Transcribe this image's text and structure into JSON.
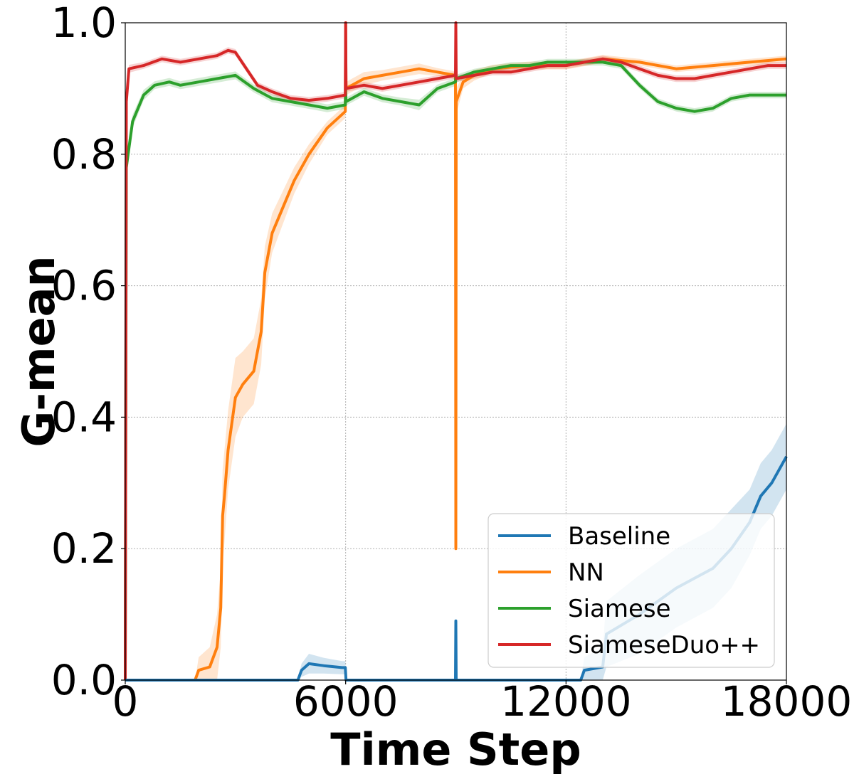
{
  "chart_data": {
    "type": "line",
    "title": "",
    "xlabel": "Time Step",
    "ylabel": "G-mean",
    "xlim": [
      0,
      18000
    ],
    "ylim": [
      0.0,
      1.0
    ],
    "xticks": [
      "0",
      "6000",
      "12000",
      "18000"
    ],
    "yticks": [
      "0.0",
      "0.2",
      "0.4",
      "0.6",
      "0.8",
      "1.0"
    ],
    "grid": true,
    "legend_position": "lower-right",
    "drift_points": [
      6000,
      9000
    ],
    "series": [
      {
        "name": "Baseline",
        "color": "#1f77b4",
        "x": [
          0,
          4700,
          4800,
          5000,
          5400,
          5900,
          5990,
          6010,
          8990,
          9000,
          9010,
          12400,
          12500,
          13000,
          13100,
          14000,
          15000,
          16000,
          16500,
          17000,
          17300,
          17600,
          18000
        ],
        "y": [
          0.0,
          0.0,
          0.015,
          0.025,
          0.022,
          0.019,
          0.019,
          0.0,
          0.0,
          0.09,
          0.0,
          0.0,
          0.015,
          0.02,
          0.07,
          0.1,
          0.14,
          0.17,
          0.2,
          0.24,
          0.28,
          0.3,
          0.34
        ],
        "band": [
          0.0,
          0.0,
          0.01,
          0.015,
          0.012,
          0.01,
          0.01,
          0.0,
          0.0,
          0.0,
          0.0,
          0.0,
          0.02,
          0.03,
          0.05,
          0.06,
          0.06,
          0.06,
          0.06,
          0.05,
          0.05,
          0.05,
          0.05
        ]
      },
      {
        "name": "NN",
        "color": "#ff7f0e",
        "x": [
          0,
          1900,
          2000,
          2300,
          2500,
          2600,
          2650,
          2700,
          2800,
          3000,
          3200,
          3500,
          3700,
          3800,
          4000,
          4300,
          4600,
          5000,
          5500,
          5990,
          6000,
          6010,
          6500,
          7000,
          7500,
          8000,
          8500,
          8990,
          9000,
          9010,
          9200,
          9500,
          10000,
          11000,
          12000,
          13000,
          14000,
          15000,
          16000,
          17000,
          18000
        ],
        "y": [
          0.0,
          0.0,
          0.015,
          0.02,
          0.05,
          0.11,
          0.25,
          0.28,
          0.35,
          0.43,
          0.45,
          0.47,
          0.53,
          0.62,
          0.68,
          0.72,
          0.76,
          0.8,
          0.84,
          0.865,
          1.0,
          0.9,
          0.915,
          0.92,
          0.925,
          0.93,
          0.925,
          0.92,
          0.2,
          0.88,
          0.91,
          0.92,
          0.93,
          0.935,
          0.935,
          0.945,
          0.94,
          0.93,
          0.935,
          0.94,
          0.945
        ],
        "band": [
          0.0,
          0.0,
          0.02,
          0.03,
          0.05,
          0.06,
          0.07,
          0.07,
          0.06,
          0.06,
          0.05,
          0.05,
          0.05,
          0.04,
          0.03,
          0.025,
          0.02,
          0.015,
          0.01,
          0.01,
          0.0,
          0.01,
          0.01,
          0.008,
          0.008,
          0.008,
          0.006,
          0.006,
          0.0,
          0.02,
          0.01,
          0.008,
          0.006,
          0.006,
          0.006,
          0.006,
          0.005,
          0.005,
          0.005,
          0.005,
          0.005
        ]
      },
      {
        "name": "Siamese",
        "color": "#2ca02c",
        "x": [
          0,
          30,
          200,
          500,
          800,
          1200,
          1500,
          2000,
          2500,
          3000,
          3500,
          4000,
          4500,
          5000,
          5500,
          5990,
          6000,
          6010,
          6500,
          7000,
          7500,
          8000,
          8500,
          8990,
          9000,
          9010,
          9500,
          10000,
          10500,
          11000,
          11500,
          12000,
          12500,
          13000,
          13500,
          14000,
          14500,
          15000,
          15500,
          16000,
          16500,
          17000,
          17500,
          18000
        ],
        "y": [
          0.0,
          0.78,
          0.85,
          0.89,
          0.905,
          0.91,
          0.905,
          0.91,
          0.915,
          0.92,
          0.9,
          0.885,
          0.88,
          0.875,
          0.87,
          0.875,
          0.9,
          0.88,
          0.895,
          0.885,
          0.88,
          0.875,
          0.9,
          0.91,
          0.92,
          0.915,
          0.925,
          0.93,
          0.935,
          0.935,
          0.94,
          0.94,
          0.94,
          0.94,
          0.935,
          0.905,
          0.88,
          0.87,
          0.865,
          0.87,
          0.885,
          0.89,
          0.89,
          0.89
        ],
        "band": [
          0.0,
          0.02,
          0.01,
          0.008,
          0.006,
          0.006,
          0.006,
          0.006,
          0.006,
          0.006,
          0.006,
          0.006,
          0.006,
          0.006,
          0.006,
          0.006,
          0.006,
          0.006,
          0.006,
          0.006,
          0.006,
          0.008,
          0.006,
          0.006,
          0.006,
          0.006,
          0.005,
          0.005,
          0.005,
          0.005,
          0.005,
          0.005,
          0.005,
          0.005,
          0.005,
          0.005,
          0.005,
          0.005,
          0.005,
          0.005,
          0.005,
          0.005,
          0.005,
          0.005
        ]
      },
      {
        "name": "SiameseDuo++",
        "color": "#d62728",
        "x": [
          0,
          30,
          100,
          500,
          1000,
          1500,
          2000,
          2500,
          2800,
          3000,
          3300,
          3600,
          4000,
          4500,
          5000,
          5500,
          5990,
          6000,
          6010,
          6500,
          7000,
          7500,
          8000,
          8500,
          8990,
          9000,
          9010,
          9500,
          10000,
          10500,
          11000,
          11500,
          12000,
          12500,
          13000,
          13500,
          14000,
          14500,
          15000,
          15500,
          16000,
          16500,
          17000,
          17500,
          18000
        ],
        "y": [
          0.0,
          0.88,
          0.93,
          0.935,
          0.945,
          0.94,
          0.945,
          0.95,
          0.958,
          0.955,
          0.93,
          0.905,
          0.895,
          0.885,
          0.882,
          0.885,
          0.89,
          1.0,
          0.9,
          0.905,
          0.9,
          0.905,
          0.91,
          0.915,
          0.92,
          1.0,
          0.915,
          0.92,
          0.925,
          0.925,
          0.93,
          0.935,
          0.935,
          0.94,
          0.945,
          0.94,
          0.93,
          0.92,
          0.915,
          0.915,
          0.92,
          0.925,
          0.93,
          0.935,
          0.935
        ],
        "band": [
          0.0,
          0.01,
          0.006,
          0.005,
          0.005,
          0.005,
          0.005,
          0.005,
          0.005,
          0.005,
          0.005,
          0.005,
          0.005,
          0.005,
          0.005,
          0.005,
          0.005,
          0.0,
          0.005,
          0.005,
          0.005,
          0.005,
          0.005,
          0.005,
          0.005,
          0.0,
          0.005,
          0.005,
          0.005,
          0.005,
          0.005,
          0.005,
          0.005,
          0.005,
          0.005,
          0.005,
          0.005,
          0.005,
          0.005,
          0.005,
          0.005,
          0.005,
          0.005,
          0.005,
          0.005
        ]
      }
    ]
  }
}
